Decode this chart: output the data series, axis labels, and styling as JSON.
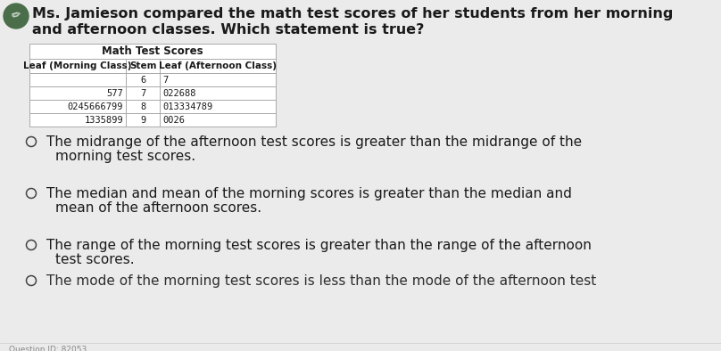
{
  "title_line1": "Ms. Jamieson compared the math test scores of her students from her morning",
  "title_line2": "and afternoon classes. Which statement is true?",
  "table_title": "Math Test Scores",
  "col_headers": [
    "Leaf (Morning Class)",
    "Stem",
    "Leaf (Afternoon Class)"
  ],
  "rows": [
    [
      "",
      "6",
      "7"
    ],
    [
      "577",
      "7",
      "022688"
    ],
    [
      "0245666799",
      "8",
      "013334789"
    ],
    [
      "1335899",
      "9",
      "0026"
    ]
  ],
  "statements": [
    [
      "The midrange of the afternoon test scores is greater than the midrange of the",
      "morning test scores."
    ],
    [
      "The median and mean of the morning scores is greater than the median and",
      "mean of the afternoon scores."
    ],
    [
      "The range of the morning test scores is greater than the range of the afternoon",
      "test scores."
    ]
  ],
  "bottom_text": "The mode of the morning test scores is less than the mode of the afternoon test",
  "bg_color": "#ebebeb",
  "table_bg": "#ffffff",
  "table_border": "#aaaaaa",
  "text_color": "#1a1a1a",
  "icon_bg": "#4a6e4a",
  "bullet_color": "#444444",
  "title_fontsize": 11.5,
  "body_fontsize": 11.0,
  "table_fontsize": 8.0
}
